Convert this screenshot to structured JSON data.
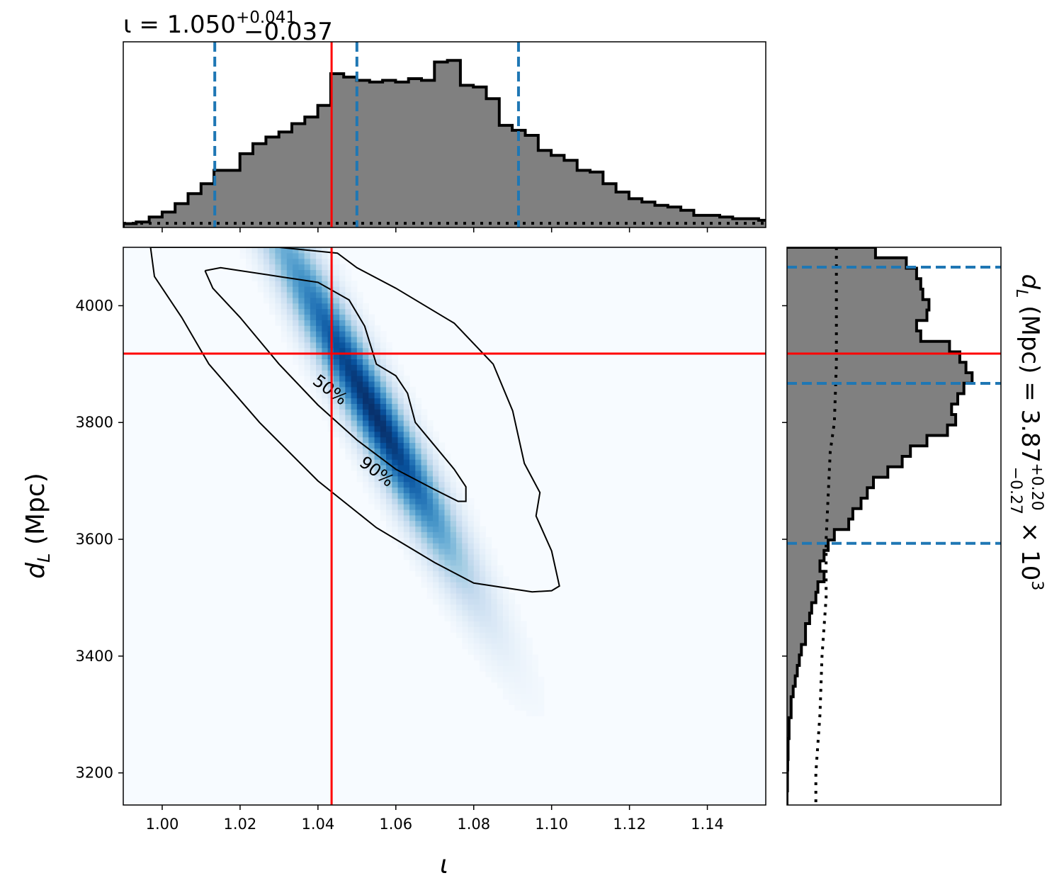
{
  "chart_data": {
    "type": "corner",
    "parameters": {
      "x": {
        "symbol": "ι",
        "range": [
          0.99,
          1.155
        ],
        "ticks": [
          "1.00",
          "1.02",
          "1.04",
          "1.06",
          "1.08",
          "1.10",
          "1.12",
          "1.14"
        ]
      },
      "y": {
        "symbol": "d",
        "subscript": "L",
        "unit": "(Mpc)",
        "range": [
          3145,
          4100
        ],
        "ticks": [
          "3200",
          "3400",
          "3600",
          "3800",
          "4000"
        ]
      }
    },
    "top_title": {
      "lhs": "ι = 1.050",
      "sup": "+0.041",
      "sub": "−0.037"
    },
    "right_title": {
      "lhs_symbol": "d",
      "lhs_sub": "L",
      "lhs_rest": " (Mpc) = 3.87",
      "sup": "+0.20",
      "sub": "−0.27",
      "suffix": " × 10",
      "exponent": "3"
    },
    "truth": {
      "x": 1.0435,
      "y": 3918
    },
    "x_quantiles": [
      1.0135,
      1.05,
      1.0915
    ],
    "y_quantiles": [
      3593,
      3867,
      4066
    ],
    "x_hist": {
      "edges_start": 0.99,
      "bin_width": 0.00333,
      "max": 1.0,
      "counts": [
        0.01,
        0.02,
        0.05,
        0.08,
        0.13,
        0.19,
        0.25,
        0.33,
        0.33,
        0.43,
        0.49,
        0.53,
        0.56,
        0.61,
        0.65,
        0.72,
        0.91,
        0.89,
        0.87,
        0.86,
        0.87,
        0.86,
        0.88,
        0.87,
        0.98,
        0.99,
        0.84,
        0.83,
        0.76,
        0.6,
        0.57,
        0.54,
        0.45,
        0.42,
        0.39,
        0.33,
        0.32,
        0.25,
        0.2,
        0.16,
        0.14,
        0.12,
        0.11,
        0.09,
        0.06,
        0.06,
        0.05,
        0.04,
        0.04,
        0.03
      ]
    },
    "x_prior_level": 0.012,
    "y_hist": {
      "edges_start": 4100,
      "bin_width": 17.9,
      "max": 1.0,
      "counts": [
        0.43,
        0.58,
        0.63,
        0.65,
        0.66,
        0.69,
        0.68,
        0.63,
        0.65,
        0.79,
        0.84,
        0.87,
        0.9,
        0.86,
        0.83,
        0.8,
        0.82,
        0.78,
        0.68,
        0.6,
        0.56,
        0.49,
        0.42,
        0.39,
        0.36,
        0.32,
        0.3,
        0.23,
        0.2,
        0.18,
        0.16,
        0.18,
        0.15,
        0.14,
        0.12,
        0.11,
        0.09,
        0.09,
        0.07,
        0.06,
        0.05,
        0.04,
        0.03,
        0.02,
        0.02,
        0.01,
        0.01,
        0.005,
        0.005,
        0.003,
        0.002,
        0.002,
        0.0,
        0.0
      ]
    },
    "y_prior_curve": [
      [
        4100,
        0.24
      ],
      [
        3900,
        0.24
      ],
      [
        3800,
        0.23
      ],
      [
        3750,
        0.21
      ],
      [
        3600,
        0.19
      ],
      [
        3500,
        0.19
      ],
      [
        3400,
        0.17
      ],
      [
        3300,
        0.16
      ],
      [
        3200,
        0.14
      ],
      [
        3145,
        0.14
      ]
    ],
    "density": {
      "center_x": 1.055,
      "center_y": 3810,
      "dir": [
        0.0095,
        -119.0
      ],
      "sigma_major": 1.55,
      "sigma_minor_x": 0.0048,
      "colormap": "Blues"
    },
    "contours": {
      "levels": [
        "50%",
        "90%"
      ],
      "c50": [
        [
          1.011,
          4060
        ],
        [
          1.015,
          4065
        ],
        [
          1.03,
          4050
        ],
        [
          1.04,
          4040
        ],
        [
          1.048,
          4010
        ],
        [
          1.052,
          3965
        ],
        [
          1.055,
          3900
        ],
        [
          1.06,
          3880
        ],
        [
          1.063,
          3850
        ],
        [
          1.065,
          3800
        ],
        [
          1.07,
          3760
        ],
        [
          1.075,
          3720
        ],
        [
          1.078,
          3690
        ],
        [
          1.078,
          3665
        ],
        [
          1.076,
          3665
        ],
        [
          1.07,
          3685
        ],
        [
          1.06,
          3720
        ],
        [
          1.05,
          3770
        ],
        [
          1.04,
          3830
        ],
        [
          1.03,
          3900
        ],
        [
          1.02,
          3980
        ],
        [
          1.013,
          4030
        ],
        [
          1.011,
          4060
        ]
      ],
      "c90": [
        [
          0.997,
          4100
        ],
        [
          1.03,
          4100
        ],
        [
          1.045,
          4090
        ],
        [
          1.05,
          4065
        ],
        [
          1.06,
          4030
        ],
        [
          1.075,
          3970
        ],
        [
          1.085,
          3900
        ],
        [
          1.09,
          3820
        ],
        [
          1.093,
          3730
        ],
        [
          1.097,
          3680
        ],
        [
          1.096,
          3640
        ],
        [
          1.1,
          3580
        ],
        [
          1.102,
          3520
        ],
        [
          1.1,
          3512
        ],
        [
          1.095,
          3510
        ],
        [
          1.08,
          3525
        ],
        [
          1.07,
          3560
        ],
        [
          1.055,
          3620
        ],
        [
          1.04,
          3700
        ],
        [
          1.025,
          3800
        ],
        [
          1.012,
          3900
        ],
        [
          1.005,
          3980
        ],
        [
          0.998,
          4050
        ],
        [
          0.997,
          4100
        ]
      ],
      "label_50": {
        "text": "50%",
        "x": 1.043,
        "y": 3855,
        "angle": 37
      },
      "label_90": {
        "text": "90%",
        "x": 1.055,
        "y": 3715,
        "angle": 37
      }
    }
  }
}
